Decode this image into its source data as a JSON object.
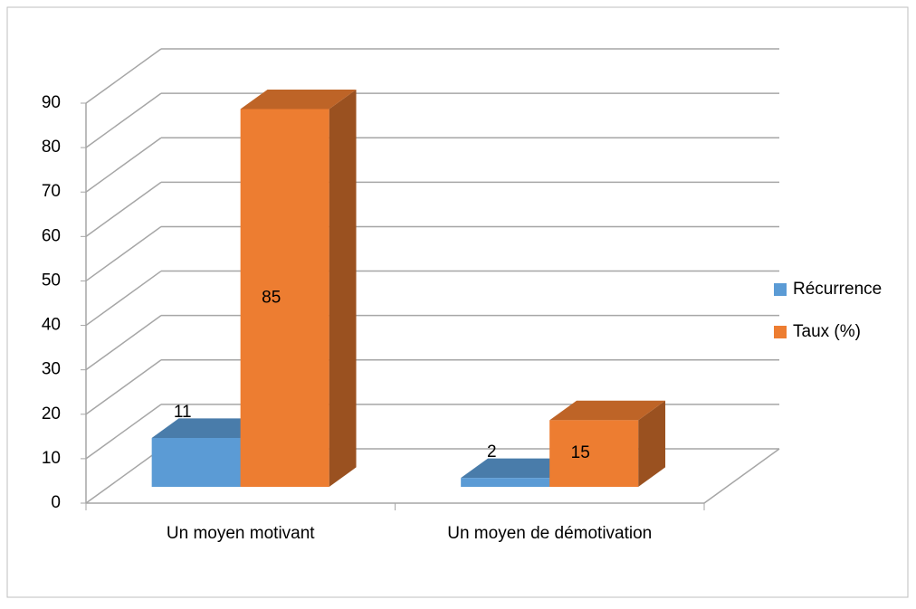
{
  "chart_data": {
    "type": "bar3d",
    "categories": [
      "Un moyen motivant",
      "Un moyen de démotivation"
    ],
    "series": [
      {
        "name": "Récurrence",
        "color": "#5b9bd5",
        "values": [
          11,
          2
        ]
      },
      {
        "name": "Taux (%)",
        "color": "#ed7d31",
        "values": [
          85,
          15
        ]
      }
    ],
    "ylim": [
      0,
      90
    ],
    "yticks": [
      0,
      10,
      20,
      30,
      40,
      50,
      60,
      70,
      80,
      90
    ],
    "grid": true,
    "legend": "right"
  }
}
